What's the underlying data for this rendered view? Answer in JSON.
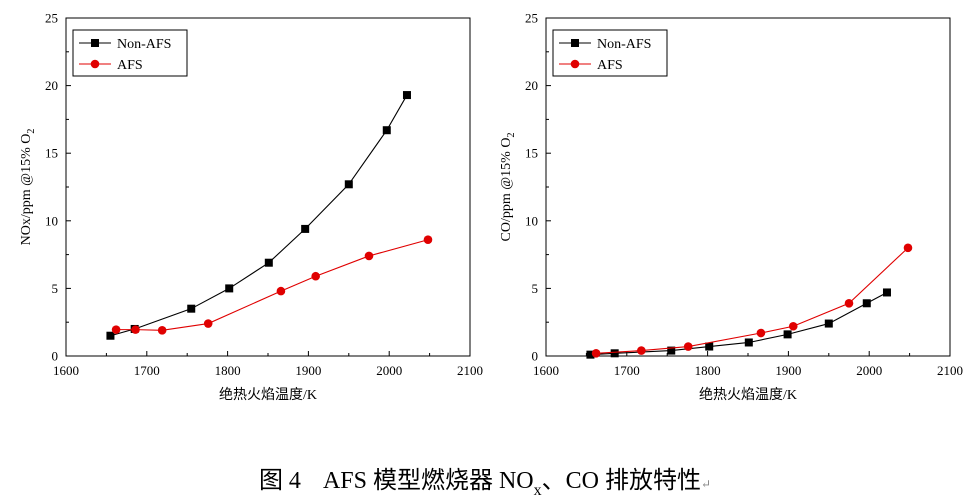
{
  "chart_data": [
    {
      "type": "line",
      "title": "",
      "xlabel": "绝热火焰温度/K",
      "ylabel_main": "NOx/ppm @15% O",
      "ylabel_sub": "2",
      "xlim": [
        1600,
        2100
      ],
      "ylim": [
        0,
        25
      ],
      "xticks": [
        1600,
        1700,
        1800,
        1900,
        2000,
        2100
      ],
      "yticks": [
        0,
        5,
        10,
        15,
        20,
        25
      ],
      "legend_position": "top-left",
      "series": [
        {
          "name": "Non-AFS",
          "color": "#000000",
          "marker": "square",
          "x": [
            1655,
            1685,
            1755,
            1802,
            1851,
            1896,
            1950,
            1997,
            2022
          ],
          "y": [
            1.5,
            2.0,
            3.5,
            5.0,
            6.9,
            9.4,
            12.7,
            16.7,
            19.3
          ]
        },
        {
          "name": "AFS",
          "color": "#e00000",
          "marker": "circle",
          "x": [
            1662,
            1686,
            1719,
            1776,
            1866,
            1909,
            1975,
            2048
          ],
          "y": [
            1.95,
            1.95,
            1.9,
            2.4,
            4.8,
            5.9,
            7.4,
            8.6
          ]
        }
      ]
    },
    {
      "type": "line",
      "title": "",
      "xlabel": "绝热火焰温度/K",
      "ylabel_main": "CO/ppm @15% O",
      "ylabel_sub": "2",
      "xlim": [
        1600,
        2100
      ],
      "ylim": [
        0,
        25
      ],
      "xticks": [
        1600,
        1700,
        1800,
        1900,
        2000,
        2100
      ],
      "yticks": [
        0,
        5,
        10,
        15,
        20,
        25
      ],
      "legend_position": "top-left",
      "series": [
        {
          "name": "Non-AFS",
          "color": "#000000",
          "marker": "square",
          "x": [
            1655,
            1685,
            1755,
            1802,
            1851,
            1899,
            1950,
            1997,
            2022
          ],
          "y": [
            0.1,
            0.2,
            0.4,
            0.7,
            1.0,
            1.6,
            2.4,
            3.9,
            4.7
          ]
        },
        {
          "name": "AFS",
          "color": "#e00000",
          "marker": "circle",
          "x": [
            1662,
            1718,
            1776,
            1866,
            1906,
            1975,
            2048
          ],
          "y": [
            0.2,
            0.4,
            0.7,
            1.7,
            2.2,
            3.9,
            8.0
          ]
        }
      ]
    }
  ],
  "caption": {
    "prefix": "图 4",
    "text": "AFS 模型燃烧器 NO",
    "sub": "x",
    "suffix": "、CO 排放特性",
    "mark": "↵"
  }
}
